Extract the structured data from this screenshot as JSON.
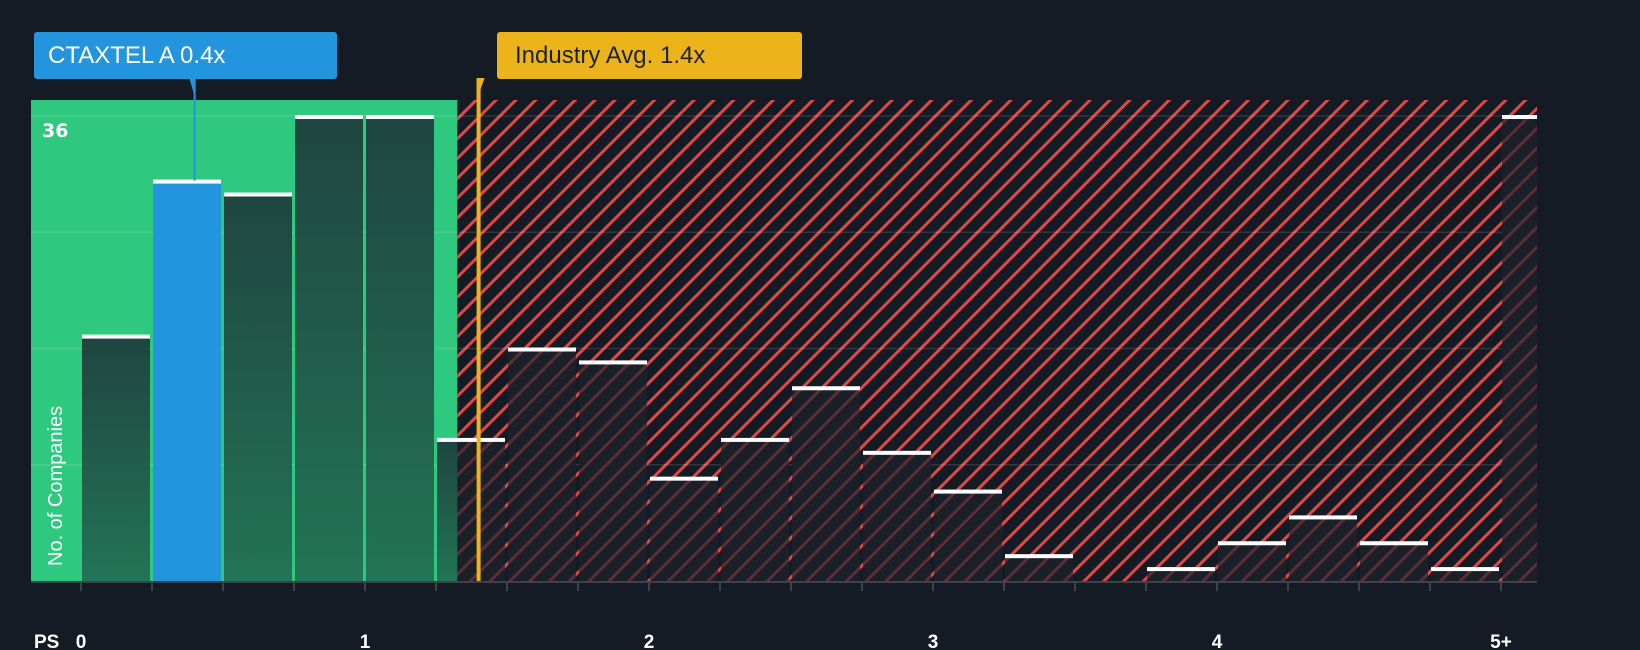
{
  "chart_data": {
    "type": "bar",
    "title": "",
    "xlabel": "PS",
    "ylabel": "No. of Companies",
    "x_tick_labels": [
      "0",
      "1",
      "2",
      "3",
      "4",
      "5+"
    ],
    "x_tick_positions": [
      0,
      1,
      2,
      3,
      4,
      5
    ],
    "bin_width": 0.25,
    "categories": [
      "0-0.25",
      "0.25-0.5",
      "0.5-0.75",
      "0.75-1",
      "1-1.25",
      "1.25-1.5",
      "1.5-1.75",
      "1.75-2",
      "2-2.25",
      "2.25-2.5",
      "2.5-2.75",
      "2.75-3",
      "3-3.25",
      "3.25-3.5",
      "3.5-3.75",
      "3.75-4",
      "4-4.25",
      "4.25-4.5",
      "4.5-4.75",
      "4.75-5",
      "5+"
    ],
    "values": [
      19,
      31,
      30,
      36,
      36,
      11,
      18,
      17,
      8,
      11,
      15,
      10,
      7,
      2,
      0,
      1,
      3,
      5,
      3,
      1,
      36
    ],
    "highlight_index": 1,
    "y_max_label": "36",
    "ylim": [
      0,
      36
    ],
    "gridlines": true,
    "grid_values": [
      9,
      18,
      27,
      36
    ],
    "regions": [
      {
        "name": "undervalued",
        "from": 0,
        "to": 1.325,
        "color": "#2ec97e"
      },
      {
        "name": "overvalued",
        "from": 1.325,
        "to": 5.25,
        "color": "#e04848",
        "pattern": "hatched"
      }
    ],
    "markers": [
      {
        "name": "company",
        "label": "CTAXTEL A 0.4x",
        "value": 0.4,
        "color": "#2394de"
      },
      {
        "name": "industry_average",
        "label": "Industry Avg. 1.4x",
        "value": 1.4,
        "color": "#ecb31a"
      }
    ]
  },
  "callouts": {
    "company": "CTAXTEL A 0.4x",
    "industry": "Industry Avg. 1.4x"
  },
  "axis": {
    "x_label": "PS",
    "y_label": "No. of Companies",
    "y_max": "36"
  },
  "colors": {
    "background": "#151b24",
    "green_region": "#2ec97e",
    "red_hatch": "#e04848",
    "company": "#2394de",
    "industry": "#ecb31a",
    "bar_dark": "#1f4a3e"
  }
}
